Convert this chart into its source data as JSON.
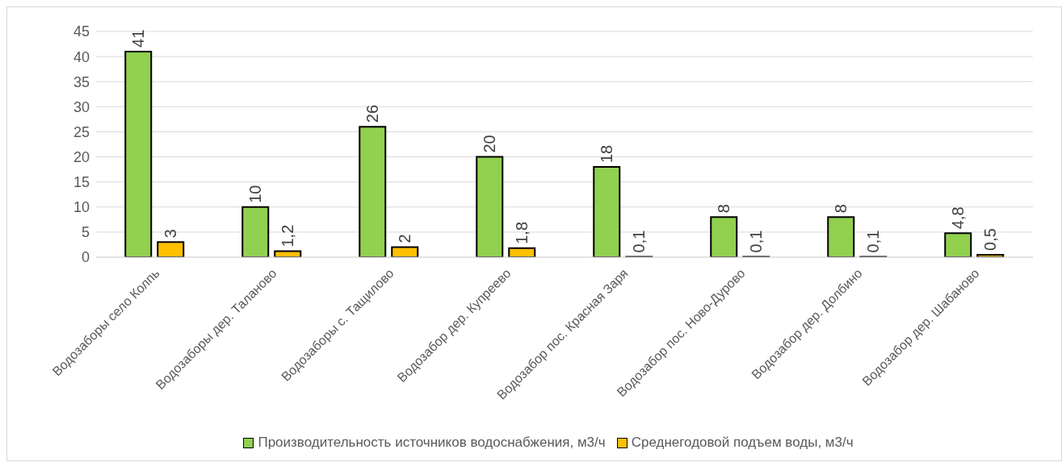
{
  "chart_data": {
    "type": "bar",
    "categories": [
      "Водозаборы село Колпь",
      "Водозаборы дер. Таланово",
      "Водозаборы с. Тащилово",
      "Водозабор дер. Купреево",
      "Водозабор пос. Красная Заря",
      "Водозабор пос.  Ново-Дурово",
      "Водозабор дер. Долбино",
      "Водозабор дер. Шабаново"
    ],
    "series": [
      {
        "name": "Производительность источников водоснабжения, м3/ч",
        "color": "#92d050",
        "values": [
          41,
          10,
          26,
          20,
          18,
          8,
          8,
          4.8
        ],
        "value_labels": [
          "41",
          "10",
          "26",
          "20",
          "18",
          "8",
          "8",
          "4,8"
        ]
      },
      {
        "name": "Среднегодовой подъем воды, м3/ч",
        "color": "#ffc000",
        "values": [
          3,
          1.2,
          2,
          1.8,
          0.1,
          0.1,
          0.1,
          0.5
        ],
        "value_labels": [
          "3",
          "1,2",
          "2",
          "1,8",
          "0,1",
          "0,1",
          "0,1",
          "0,5"
        ]
      }
    ],
    "ylim": [
      0,
      45
    ],
    "yticks": [
      0,
      5,
      10,
      15,
      20,
      25,
      30,
      35,
      40,
      45
    ],
    "grid": "y",
    "legend": "bottom"
  }
}
